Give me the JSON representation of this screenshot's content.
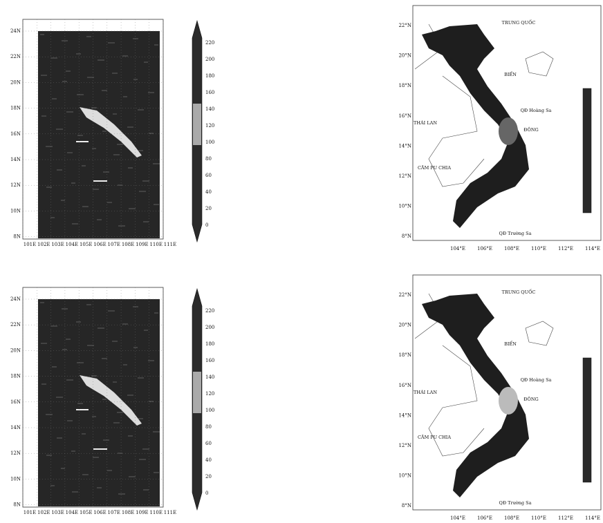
{
  "left_panels": [
    {
      "y_labels": [
        "24N",
        "22N",
        "20N",
        "18N",
        "16N",
        "14N",
        "12N",
        "10N",
        "8N"
      ],
      "x_labels": [
        "101E",
        "102E",
        "103E",
        "104E",
        "105E",
        "106E",
        "107E",
        "108E",
        "109E",
        "110E",
        "111E"
      ],
      "colorbar_labels": [
        220,
        200,
        180,
        160,
        140,
        120,
        100,
        80,
        60,
        40,
        20,
        0
      ]
    },
    {
      "y_labels": [
        "24N",
        "22N",
        "20N",
        "18N",
        "16N",
        "14N",
        "12N",
        "10N",
        "8N"
      ],
      "x_labels": [
        "101E",
        "102E",
        "103E",
        "104E",
        "105E",
        "106E",
        "107E",
        "108E",
        "109E",
        "110E",
        "111E"
      ],
      "colorbar_labels": [
        220,
        200,
        180,
        160,
        140,
        120,
        100,
        80,
        60,
        40,
        20,
        0
      ]
    }
  ],
  "right_panels": [
    {
      "y_labels": [
        "22°N",
        "20°N",
        "18°N",
        "16°N",
        "14°N",
        "12°N",
        "10°N",
        "8°N"
      ],
      "x_labels": [
        "104°E",
        "106°E",
        "108°E",
        "110°E",
        "112°E",
        "114°E"
      ],
      "places": [
        "TRUNG QUỐC",
        "BIỂN",
        "ĐÔNG",
        "THÁI LAN",
        "CĂM PU CHIA",
        "QĐ Hoàng Sa",
        "QĐ Trường Sa"
      ]
    },
    {
      "y_labels": [
        "22°N",
        "20°N",
        "18°N",
        "16°N",
        "14°N",
        "12°N",
        "10°N",
        "8°N"
      ],
      "x_labels": [
        "104°E",
        "106°E",
        "108°E",
        "110°E",
        "112°E",
        "114°E"
      ],
      "places": [
        "TRUNG QUỐC",
        "BIỂN",
        "ĐÔNG",
        "THÁI LAN",
        "CĂM PU CHIA",
        "QĐ Hoàng Sa",
        "QĐ Trường Sa"
      ]
    }
  ]
}
